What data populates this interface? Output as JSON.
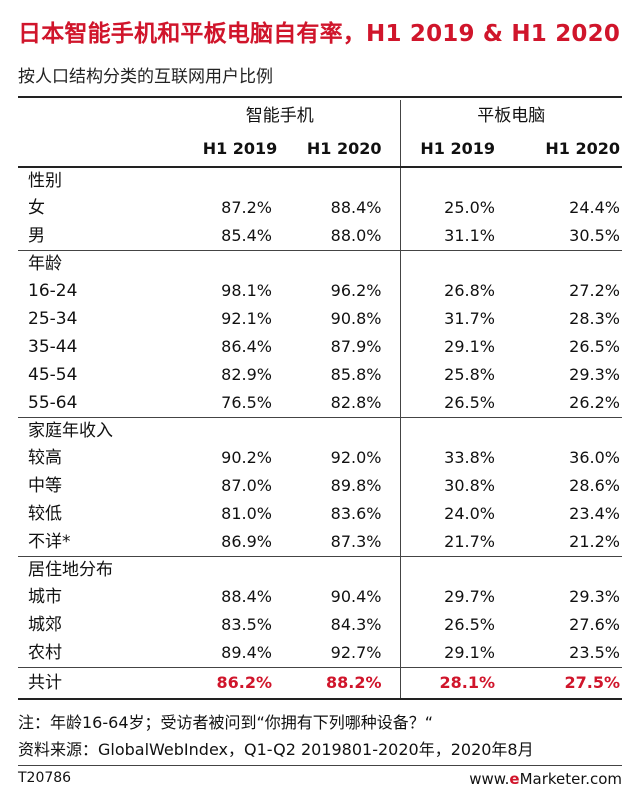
{
  "title": "日本智能手机和平板电脑自有率，H1 2019 & H1 2020",
  "subtitle": "按人口结构分类的互联网用户比例",
  "groups": [
    "智能手机",
    "平板电脑"
  ],
  "years": [
    "H1 2019",
    "H1 2020",
    "H1 2019",
    "H1 2020"
  ],
  "sections": [
    {
      "label": "性别",
      "rows": [
        {
          "label": "女",
          "values": [
            "87.2%",
            "88.4%",
            "25.0%",
            "24.4%"
          ]
        },
        {
          "label": "男",
          "values": [
            "85.4%",
            "88.0%",
            "31.1%",
            "30.5%"
          ]
        }
      ]
    },
    {
      "label": "年龄",
      "rows": [
        {
          "label": "16-24",
          "values": [
            "98.1%",
            "96.2%",
            "26.8%",
            "27.2%"
          ]
        },
        {
          "label": "25-34",
          "values": [
            "92.1%",
            "90.8%",
            "31.7%",
            "28.3%"
          ]
        },
        {
          "label": "35-44",
          "values": [
            "86.4%",
            "87.9%",
            "29.1%",
            "26.5%"
          ]
        },
        {
          "label": "45-54",
          "values": [
            "82.9%",
            "85.8%",
            "25.8%",
            "29.3%"
          ]
        },
        {
          "label": "55-64",
          "values": [
            "76.5%",
            "82.8%",
            "26.5%",
            "26.2%"
          ]
        }
      ]
    },
    {
      "label": "家庭年收入",
      "rows": [
        {
          "label": "较高",
          "values": [
            "90.2%",
            "92.0%",
            "33.8%",
            "36.0%"
          ]
        },
        {
          "label": "中等",
          "values": [
            "87.0%",
            "89.8%",
            "30.8%",
            "28.6%"
          ]
        },
        {
          "label": "较低",
          "values": [
            "81.0%",
            "83.6%",
            "24.0%",
            "23.4%"
          ]
        },
        {
          "label": "不详*",
          "values": [
            "86.9%",
            "87.3%",
            "21.7%",
            "21.2%"
          ]
        }
      ]
    },
    {
      "label": "居住地分布",
      "rows": [
        {
          "label": "城市",
          "values": [
            "88.4%",
            "90.4%",
            "29.7%",
            "29.3%"
          ]
        },
        {
          "label": "城郊",
          "values": [
            "83.5%",
            "84.3%",
            "26.5%",
            "27.6%"
          ]
        },
        {
          "label": "农村",
          "values": [
            "89.4%",
            "92.7%",
            "29.1%",
            "23.5%"
          ]
        }
      ]
    }
  ],
  "total": {
    "label": "共计",
    "values": [
      "86.2%",
      "88.2%",
      "28.1%",
      "27.5%"
    ]
  },
  "note": "注：年龄16-64岁；受访者被问到“你拥有下列哪种设备？“",
  "source": "资料来源：GlobalWebIndex，Q1-Q2 2019801-2020年，2020年8月",
  "code": "T20786",
  "brand": {
    "prefix": "www.",
    "accent": "e",
    "suffix": "Marketer.com"
  },
  "colors": {
    "accent": "#d0152b"
  },
  "chart_data": {
    "type": "table",
    "title": "日本智能手机和平板电脑自有率，H1 2019 & H1 2020",
    "subtitle": "按人口结构分类的互联网用户比例",
    "columns": [
      "智能手机 H1 2019",
      "智能手机 H1 2020",
      "平板电脑 H1 2019",
      "平板电脑 H1 2020"
    ],
    "rows": [
      {
        "section": "性别",
        "label": "女",
        "values": [
          87.2,
          88.4,
          25.0,
          24.4
        ]
      },
      {
        "section": "性别",
        "label": "男",
        "values": [
          85.4,
          88.0,
          31.1,
          30.5
        ]
      },
      {
        "section": "年龄",
        "label": "16-24",
        "values": [
          98.1,
          96.2,
          26.8,
          27.2
        ]
      },
      {
        "section": "年龄",
        "label": "25-34",
        "values": [
          92.1,
          90.8,
          31.7,
          28.3
        ]
      },
      {
        "section": "年龄",
        "label": "35-44",
        "values": [
          86.4,
          87.9,
          29.1,
          26.5
        ]
      },
      {
        "section": "年龄",
        "label": "45-54",
        "values": [
          82.9,
          85.8,
          25.8,
          29.3
        ]
      },
      {
        "section": "年龄",
        "label": "55-64",
        "values": [
          76.5,
          82.8,
          26.5,
          26.2
        ]
      },
      {
        "section": "家庭年收入",
        "label": "较高",
        "values": [
          90.2,
          92.0,
          33.8,
          36.0
        ]
      },
      {
        "section": "家庭年收入",
        "label": "中等",
        "values": [
          87.0,
          89.8,
          30.8,
          28.6
        ]
      },
      {
        "section": "家庭年收入",
        "label": "较低",
        "values": [
          81.0,
          83.6,
          24.0,
          23.4
        ]
      },
      {
        "section": "家庭年收入",
        "label": "不详*",
        "values": [
          86.9,
          87.3,
          21.7,
          21.2
        ]
      },
      {
        "section": "居住地分布",
        "label": "城市",
        "values": [
          88.4,
          90.4,
          29.7,
          29.3
        ]
      },
      {
        "section": "居住地分布",
        "label": "城郊",
        "values": [
          83.5,
          84.3,
          26.5,
          27.6
        ]
      },
      {
        "section": "居住地分布",
        "label": "农村",
        "values": [
          89.4,
          92.7,
          29.1,
          23.5
        ]
      },
      {
        "section": "",
        "label": "共计",
        "values": [
          86.2,
          88.2,
          28.1,
          27.5
        ]
      }
    ]
  }
}
